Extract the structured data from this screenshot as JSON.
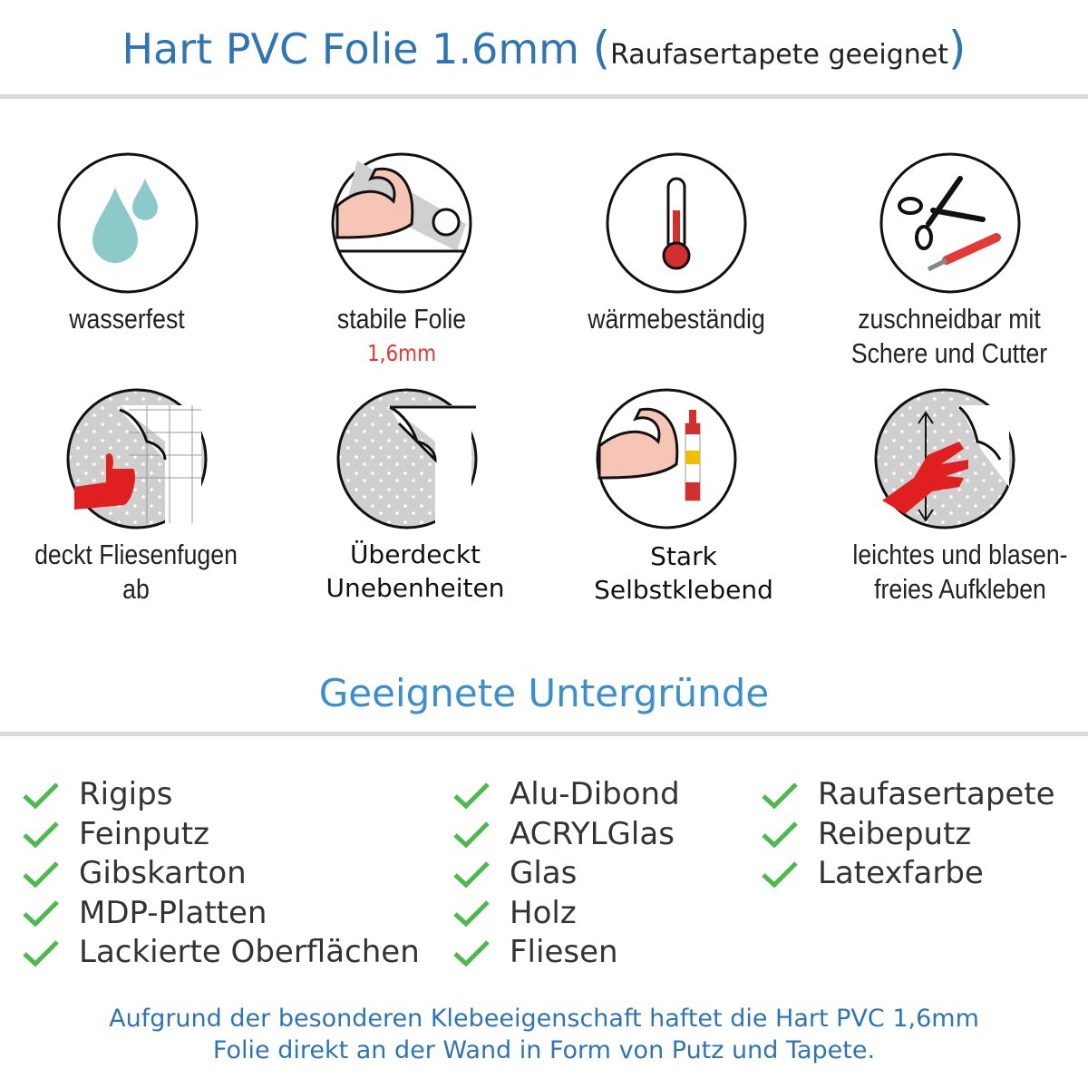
{
  "header": {
    "title": "Hart PVC Folie 1.6mm",
    "subtitle": "Raufasertapete geeignet"
  },
  "features": [
    {
      "icon": "water-drops-icon",
      "lines": [
        "wasserfest"
      ]
    },
    {
      "icon": "strong-arm-roll-icon",
      "lines": [
        "stabile Folie"
      ],
      "highlight": "1,6mm"
    },
    {
      "icon": "thermometer-icon",
      "lines": [
        "wärmebeständig"
      ]
    },
    {
      "icon": "scissors-cutter-icon",
      "lines": [
        "zuschneidbar mit",
        "Schere und Cutter"
      ]
    },
    {
      "icon": "thumbs-up-tiles-icon",
      "lines": [
        "deckt Fliesenfugen ab"
      ]
    },
    {
      "icon": "foil-corner-icon",
      "lines": [
        "Überdeckt",
        "Unebenheiten"
      ]
    },
    {
      "icon": "arm-glue-icon",
      "lines": [
        "Stark",
        "Selbstklebend"
      ]
    },
    {
      "icon": "hand-smooth-icon",
      "lines": [
        "leichtes und blasen-",
        "freies Aufkleben"
      ]
    }
  ],
  "section": {
    "title": "Geeignete Untergründe"
  },
  "surfaces": [
    [
      "Rigips",
      "Feinputz",
      "Gibskarton",
      "MDP-Platten",
      "Lackierte Oberflächen"
    ],
    [
      "Alu-Dibond",
      "ACRYLGlas",
      "Glas",
      "Holz",
      "Fliesen"
    ],
    [
      "Raufasertapete",
      "Reibeputz",
      "Latexfarbe"
    ]
  ],
  "footer": {
    "lines": [
      "Aufgrund der besonderen Klebeeigenschaft haftet die Hart PVC 1,6mm",
      "Folie direkt an der Wand in Form von Putz und Tapete."
    ]
  },
  "colors": {
    "title_blue": "#2e75b6",
    "section_blue": "#3a8fd0",
    "check_green": "#4cbb4c",
    "highlight_red": "#e53935"
  }
}
